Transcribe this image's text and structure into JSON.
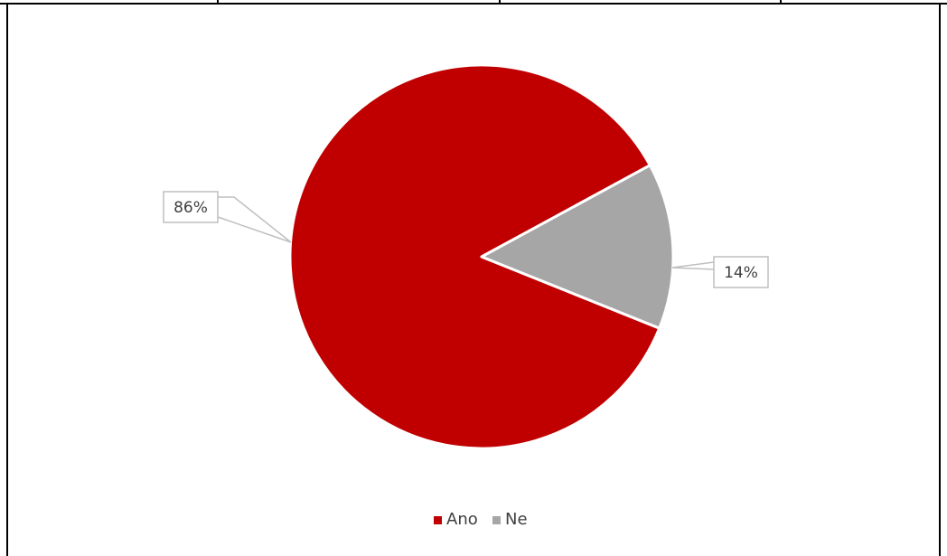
{
  "chart_data": {
    "type": "pie",
    "categories": [
      "Ano",
      "Ne"
    ],
    "values": [
      86,
      14
    ],
    "data_labels": [
      "86%",
      "14%"
    ],
    "colors": [
      "#c00000",
      "#a6a6a6"
    ],
    "legend": {
      "position": "bottom",
      "entries": [
        "Ano",
        "Ne"
      ]
    }
  }
}
